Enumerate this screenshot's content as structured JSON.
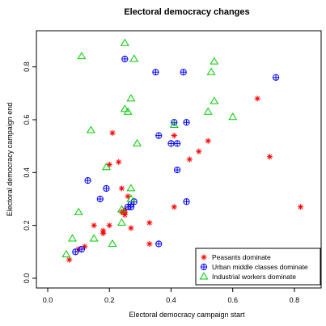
{
  "chart_data": {
    "type": "scatter",
    "title": "Electoral democracy changes",
    "xlabel": "Electoral democracy campaign start",
    "ylabel": "Electoral democracy campaign end",
    "xlim": [
      0,
      0.85
    ],
    "ylim": [
      0,
      0.9
    ],
    "x_ticks": [
      "0.0",
      "0.2",
      "0.4",
      "0.6",
      "0.8"
    ],
    "y_ticks": [
      "0.0",
      "0.2",
      "0.4",
      "0.6",
      "0.8"
    ],
    "grid": false,
    "legend_position": "bottom-right",
    "series": [
      {
        "name": "Peasants dominate",
        "marker": "asterisk",
        "color": "#ff0000",
        "points": [
          [
            0.07,
            0.07
          ],
          [
            0.1,
            0.11
          ],
          [
            0.12,
            0.12
          ],
          [
            0.15,
            0.2
          ],
          [
            0.18,
            0.18
          ],
          [
            0.18,
            0.17
          ],
          [
            0.2,
            0.2
          ],
          [
            0.2,
            0.43
          ],
          [
            0.21,
            0.55
          ],
          [
            0.23,
            0.44
          ],
          [
            0.24,
            0.34
          ],
          [
            0.24,
            0.25
          ],
          [
            0.25,
            0.24
          ],
          [
            0.25,
            0.26
          ],
          [
            0.25,
            0.25
          ],
          [
            0.26,
            0.31
          ],
          [
            0.27,
            0.19
          ],
          [
            0.33,
            0.13
          ],
          [
            0.33,
            0.21
          ],
          [
            0.41,
            0.54
          ],
          [
            0.41,
            0.27
          ],
          [
            0.46,
            0.45
          ],
          [
            0.49,
            0.48
          ],
          [
            0.52,
            0.52
          ],
          [
            0.68,
            0.68
          ],
          [
            0.72,
            0.46
          ],
          [
            0.82,
            0.27
          ]
        ]
      },
      {
        "name": "Urban middle classes dominate",
        "marker": "circle-plus",
        "color": "#0000ff",
        "points": [
          [
            0.09,
            0.1
          ],
          [
            0.11,
            0.11
          ],
          [
            0.13,
            0.37
          ],
          [
            0.17,
            0.3
          ],
          [
            0.19,
            0.34
          ],
          [
            0.25,
            0.83
          ],
          [
            0.26,
            0.27
          ],
          [
            0.27,
            0.27
          ],
          [
            0.27,
            0.28
          ],
          [
            0.28,
            0.29
          ],
          [
            0.35,
            0.78
          ],
          [
            0.36,
            0.54
          ],
          [
            0.36,
            0.13
          ],
          [
            0.4,
            0.51
          ],
          [
            0.41,
            0.59
          ],
          [
            0.42,
            0.51
          ],
          [
            0.42,
            0.41
          ],
          [
            0.44,
            0.78
          ],
          [
            0.45,
            0.29
          ],
          [
            0.45,
            0.59
          ],
          [
            0.74,
            0.76
          ]
        ]
      },
      {
        "name": "Industrial workers dominate",
        "marker": "triangle",
        "color": "#00cc00",
        "points": [
          [
            0.06,
            0.09
          ],
          [
            0.08,
            0.15
          ],
          [
            0.1,
            0.25
          ],
          [
            0.11,
            0.84
          ],
          [
            0.14,
            0.56
          ],
          [
            0.15,
            0.15
          ],
          [
            0.19,
            0.42
          ],
          [
            0.21,
            0.13
          ],
          [
            0.24,
            0.26
          ],
          [
            0.24,
            0.21
          ],
          [
            0.25,
            0.89
          ],
          [
            0.25,
            0.64
          ],
          [
            0.26,
            0.63
          ],
          [
            0.27,
            0.34
          ],
          [
            0.27,
            0.3
          ],
          [
            0.27,
            0.68
          ],
          [
            0.28,
            0.83
          ],
          [
            0.29,
            0.51
          ],
          [
            0.41,
            0.58
          ],
          [
            0.52,
            0.63
          ],
          [
            0.53,
            0.78
          ],
          [
            0.54,
            0.67
          ],
          [
            0.54,
            0.82
          ],
          [
            0.6,
            0.61
          ]
        ]
      }
    ]
  }
}
